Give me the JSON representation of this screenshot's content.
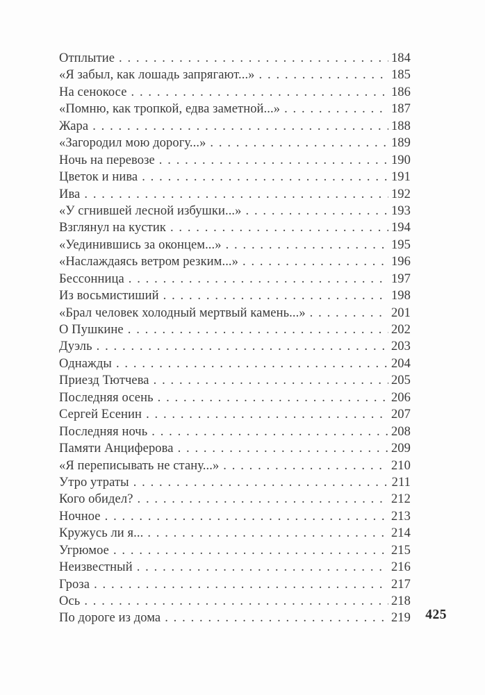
{
  "page": {
    "folio": "425",
    "background": "#fdfdfd",
    "text_color": "#3a3a3a"
  },
  "toc": {
    "entries": [
      {
        "title": "Отплытие",
        "page": "184"
      },
      {
        "title": "«Я забыл, как лошадь запрягают...»",
        "page": "185"
      },
      {
        "title": "На сенокосе",
        "page": "186"
      },
      {
        "title": "«Помню, как тропкой, едва заметной...»",
        "page": "187"
      },
      {
        "title": "Жара",
        "page": "188"
      },
      {
        "title": "«Загородил мою дорогу...»",
        "page": "189"
      },
      {
        "title": "Ночь на перевозе",
        "page": "190"
      },
      {
        "title": "Цветок и нива",
        "page": "191"
      },
      {
        "title": "Ива",
        "page": "192"
      },
      {
        "title": "«У сгнившей лесной избушки...»",
        "page": "193"
      },
      {
        "title": "Взглянул на кустик",
        "page": "194"
      },
      {
        "title": "«Уединившись за оконцем...»",
        "page": "195"
      },
      {
        "title": "«Наслаждаясь ветром резким...»",
        "page": "196"
      },
      {
        "title": "Бессонница",
        "page": "197"
      },
      {
        "title": "Из восьмистиший",
        "page": "198"
      },
      {
        "title": "«Брал человек холодный мертвый камень...»",
        "page": "201"
      },
      {
        "title": "О Пушкине",
        "page": "202"
      },
      {
        "title": "Дуэль",
        "page": "203"
      },
      {
        "title": "Однажды",
        "page": "204"
      },
      {
        "title": "Приезд Тютчева",
        "page": "205"
      },
      {
        "title": "Последняя осень",
        "page": "206"
      },
      {
        "title": "Сергей Есенин",
        "page": "207"
      },
      {
        "title": "Последняя ночь",
        "page": "208"
      },
      {
        "title": "Памяти Анциферова",
        "page": "209"
      },
      {
        "title": "«Я переписывать не стану...»",
        "page": "210"
      },
      {
        "title": "Утро утраты",
        "page": "211"
      },
      {
        "title": "Кого обидел?",
        "page": "212"
      },
      {
        "title": "Ночное",
        "page": "213"
      },
      {
        "title": "Кружусь ли я...",
        "page": "214"
      },
      {
        "title": "Угрюмое",
        "page": "215"
      },
      {
        "title": "Неизвестный",
        "page": "216"
      },
      {
        "title": "Гроза",
        "page": "217"
      },
      {
        "title": "Ось",
        "page": "218"
      },
      {
        "title": "По дороге из дома",
        "page": "219"
      }
    ]
  }
}
